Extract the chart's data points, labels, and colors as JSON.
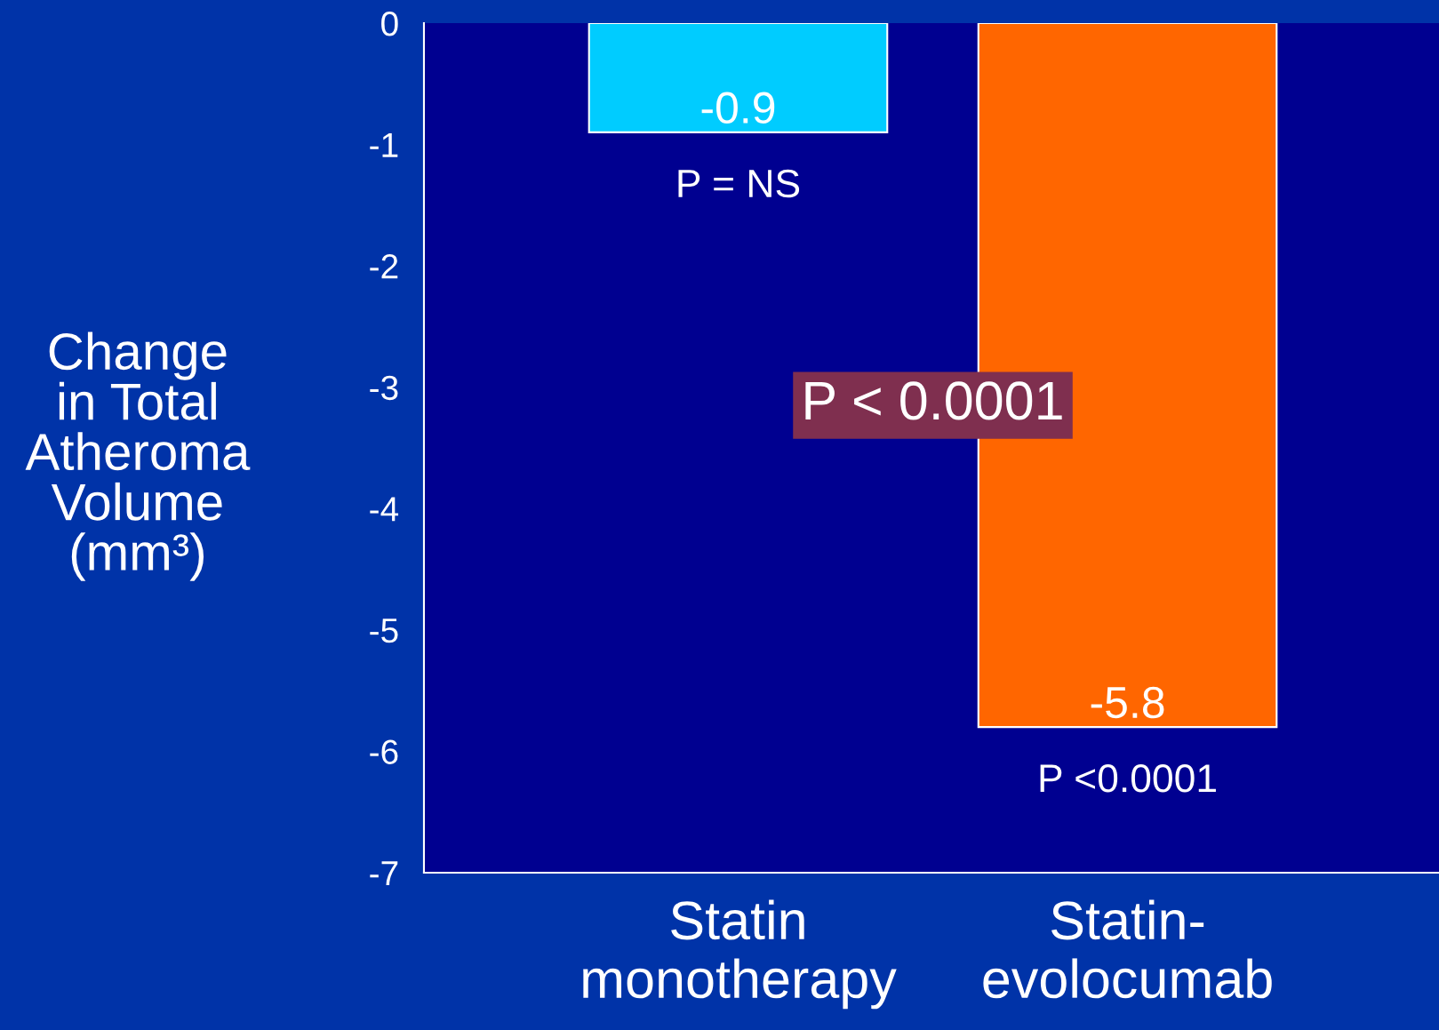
{
  "chart_data": {
    "type": "bar",
    "ylabel": "Change\nin Total\nAtheroma\nVolume\n(mm³)",
    "categories": [
      "Statin\nmonotherapy",
      "Statin-\nevolocumab"
    ],
    "values": [
      -0.9,
      -5.8
    ],
    "colors": [
      "#00ccff",
      "#ff6600"
    ],
    "data_labels": true,
    "ylim": [
      -7,
      0
    ],
    "yticks": [
      0,
      -1,
      -2,
      -3,
      -4,
      -5,
      -6,
      -7
    ],
    "grid": false,
    "annotations": [
      "P = NS",
      "P <0.0001",
      "P < 0.0001"
    ]
  }
}
